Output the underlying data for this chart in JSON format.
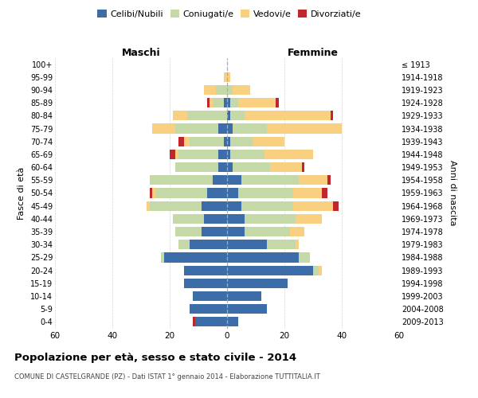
{
  "age_groups": [
    "0-4",
    "5-9",
    "10-14",
    "15-19",
    "20-24",
    "25-29",
    "30-34",
    "35-39",
    "40-44",
    "45-49",
    "50-54",
    "55-59",
    "60-64",
    "65-69",
    "70-74",
    "75-79",
    "80-84",
    "85-89",
    "90-94",
    "95-99",
    "100+"
  ],
  "birth_years": [
    "2009-2013",
    "2004-2008",
    "1999-2003",
    "1994-1998",
    "1989-1993",
    "1984-1988",
    "1979-1983",
    "1974-1978",
    "1969-1973",
    "1964-1968",
    "1959-1963",
    "1954-1958",
    "1949-1953",
    "1944-1948",
    "1939-1943",
    "1934-1938",
    "1929-1933",
    "1924-1928",
    "1919-1923",
    "1914-1918",
    "≤ 1913"
  ],
  "maschi": {
    "celibi": [
      11,
      13,
      12,
      15,
      15,
      22,
      13,
      9,
      8,
      9,
      7,
      5,
      3,
      3,
      1,
      3,
      0,
      1,
      0,
      0,
      0
    ],
    "coniugati": [
      0,
      0,
      0,
      0,
      0,
      1,
      4,
      9,
      11,
      18,
      18,
      22,
      15,
      14,
      12,
      15,
      14,
      4,
      4,
      0,
      0
    ],
    "vedovi": [
      0,
      0,
      0,
      0,
      0,
      0,
      0,
      0,
      0,
      1,
      1,
      0,
      0,
      1,
      2,
      8,
      5,
      1,
      4,
      1,
      0
    ],
    "divorziati": [
      1,
      0,
      0,
      0,
      0,
      0,
      0,
      0,
      0,
      0,
      1,
      0,
      0,
      2,
      2,
      0,
      0,
      1,
      0,
      0,
      0
    ]
  },
  "femmine": {
    "nubili": [
      4,
      14,
      12,
      21,
      30,
      25,
      14,
      6,
      6,
      5,
      4,
      5,
      2,
      1,
      1,
      2,
      1,
      1,
      0,
      0,
      0
    ],
    "coniugate": [
      0,
      0,
      0,
      0,
      2,
      4,
      10,
      16,
      18,
      18,
      19,
      20,
      13,
      12,
      8,
      12,
      5,
      3,
      2,
      0,
      0
    ],
    "vedove": [
      0,
      0,
      0,
      0,
      1,
      0,
      1,
      5,
      9,
      14,
      10,
      10,
      11,
      17,
      11,
      26,
      30,
      13,
      6,
      1,
      0
    ],
    "divorziate": [
      0,
      0,
      0,
      0,
      0,
      0,
      0,
      0,
      0,
      2,
      2,
      1,
      1,
      0,
      0,
      0,
      1,
      1,
      0,
      0,
      0
    ]
  },
  "colors": {
    "celibi": "#3c6da8",
    "coniugati": "#c5d9a8",
    "vedovi": "#f9d080",
    "divorziati": "#c0272d"
  },
  "xlim": 60,
  "title": "Popolazione per età, sesso e stato civile - 2014",
  "subtitle": "COMUNE DI CASTELGRANDE (PZ) - Dati ISTAT 1° gennaio 2014 - Elaborazione TUTTITALIA.IT",
  "ylabel_left": "Fasce di età",
  "ylabel_right": "Anni di nascita",
  "label_maschi": "Maschi",
  "label_femmine": "Femmine",
  "background_color": "#ffffff",
  "grid_color": "#cccccc",
  "legend_labels": [
    "Celibi/Nubili",
    "Coniugati/e",
    "Vedovi/e",
    "Divorziati/e"
  ]
}
